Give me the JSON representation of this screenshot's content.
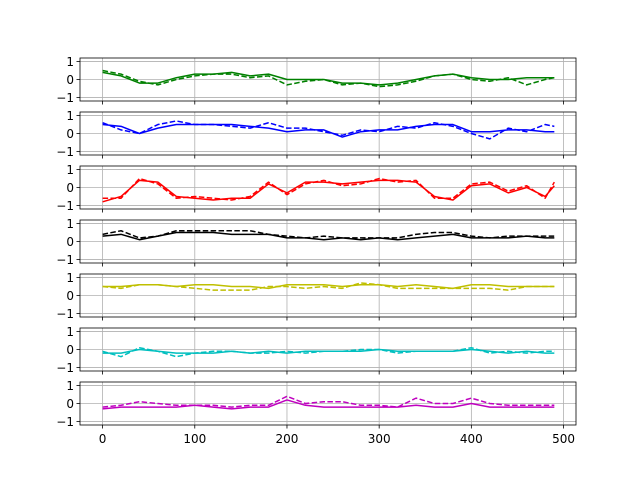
{
  "chart_data": [
    {
      "type": "line",
      "color": "#008000",
      "ylim": [
        -1.2,
        1.2
      ],
      "yticks": [
        "1",
        "0",
        "−1"
      ],
      "x": [
        0,
        20,
        40,
        60,
        80,
        100,
        120,
        140,
        160,
        180,
        200,
        220,
        240,
        260,
        280,
        300,
        320,
        340,
        360,
        380,
        400,
        420,
        440,
        460,
        480,
        490
      ],
      "series": [
        {
          "style": "solid",
          "values": [
            0.4,
            0.2,
            -0.2,
            -0.2,
            0.1,
            0.3,
            0.3,
            0.4,
            0.2,
            0.3,
            0.0,
            0.0,
            0.0,
            -0.2,
            -0.2,
            -0.3,
            -0.2,
            0.0,
            0.2,
            0.3,
            0.1,
            0.0,
            0.0,
            0.1,
            0.1,
            0.1
          ]
        },
        {
          "style": "dashed",
          "values": [
            0.5,
            0.3,
            -0.1,
            -0.3,
            0.0,
            0.2,
            0.3,
            0.3,
            0.1,
            0.2,
            -0.3,
            -0.1,
            0.0,
            -0.3,
            -0.2,
            -0.4,
            -0.3,
            -0.1,
            0.2,
            0.3,
            0.0,
            -0.1,
            0.1,
            -0.3,
            0.0,
            0.1
          ]
        }
      ]
    },
    {
      "type": "line",
      "color": "#0000ff",
      "ylim": [
        -1.2,
        1.2
      ],
      "yticks": [
        "1",
        "0",
        "−1"
      ],
      "x": [
        0,
        20,
        40,
        60,
        80,
        100,
        120,
        140,
        160,
        180,
        200,
        220,
        240,
        260,
        280,
        300,
        320,
        340,
        360,
        380,
        400,
        420,
        440,
        460,
        480,
        490
      ],
      "series": [
        {
          "style": "solid",
          "values": [
            0.5,
            0.4,
            0.0,
            0.3,
            0.5,
            0.5,
            0.5,
            0.5,
            0.4,
            0.3,
            0.1,
            0.2,
            0.2,
            -0.2,
            0.1,
            0.2,
            0.2,
            0.4,
            0.5,
            0.5,
            0.1,
            0.1,
            0.2,
            0.2,
            0.1,
            0.1
          ]
        },
        {
          "style": "dashed",
          "values": [
            0.6,
            0.2,
            0.0,
            0.5,
            0.7,
            0.5,
            0.5,
            0.4,
            0.3,
            0.6,
            0.3,
            0.3,
            0.1,
            -0.1,
            0.2,
            0.1,
            0.4,
            0.3,
            0.6,
            0.4,
            0.0,
            -0.3,
            0.3,
            0.1,
            0.5,
            0.4
          ]
        }
      ]
    },
    {
      "type": "line",
      "color": "#ff0000",
      "ylim": [
        -1.2,
        1.2
      ],
      "yticks": [
        "1",
        "0",
        "−1"
      ],
      "x": [
        0,
        20,
        40,
        60,
        80,
        100,
        120,
        140,
        160,
        180,
        200,
        220,
        240,
        260,
        280,
        300,
        320,
        340,
        360,
        380,
        400,
        420,
        440,
        460,
        480,
        490
      ],
      "series": [
        {
          "style": "solid",
          "values": [
            -0.8,
            -0.5,
            0.4,
            0.3,
            -0.5,
            -0.6,
            -0.7,
            -0.6,
            -0.6,
            0.2,
            -0.3,
            0.3,
            0.3,
            0.2,
            0.3,
            0.4,
            0.4,
            0.3,
            -0.5,
            -0.7,
            0.1,
            0.2,
            -0.3,
            0.0,
            -0.5,
            0.1
          ]
        },
        {
          "style": "dashed",
          "values": [
            -0.6,
            -0.6,
            0.5,
            0.2,
            -0.6,
            -0.5,
            -0.6,
            -0.7,
            -0.5,
            0.3,
            -0.4,
            0.2,
            0.4,
            0.1,
            0.2,
            0.5,
            0.3,
            0.4,
            -0.6,
            -0.6,
            0.2,
            0.3,
            -0.2,
            0.1,
            -0.6,
            0.3
          ]
        }
      ]
    },
    {
      "type": "line",
      "color": "#000000",
      "ylim": [
        -1.2,
        1.2
      ],
      "yticks": [
        "1",
        "0",
        "−1"
      ],
      "x": [
        0,
        20,
        40,
        60,
        80,
        100,
        120,
        140,
        160,
        180,
        200,
        220,
        240,
        260,
        280,
        300,
        320,
        340,
        360,
        380,
        400,
        420,
        440,
        460,
        480,
        490
      ],
      "series": [
        {
          "style": "solid",
          "values": [
            0.3,
            0.4,
            0.1,
            0.3,
            0.5,
            0.5,
            0.5,
            0.4,
            0.4,
            0.4,
            0.2,
            0.2,
            0.1,
            0.2,
            0.1,
            0.2,
            0.1,
            0.2,
            0.3,
            0.4,
            0.2,
            0.2,
            0.2,
            0.3,
            0.2,
            0.2
          ]
        },
        {
          "style": "dashed",
          "values": [
            0.4,
            0.6,
            0.2,
            0.3,
            0.6,
            0.6,
            0.6,
            0.6,
            0.6,
            0.4,
            0.3,
            0.2,
            0.3,
            0.2,
            0.2,
            0.2,
            0.2,
            0.4,
            0.5,
            0.5,
            0.3,
            0.2,
            0.3,
            0.3,
            0.3,
            0.3
          ]
        }
      ]
    },
    {
      "type": "line",
      "color": "#bfbf00",
      "ylim": [
        -1.2,
        1.2
      ],
      "yticks": [
        "1",
        "0",
        "−1"
      ],
      "x": [
        0,
        20,
        40,
        60,
        80,
        100,
        120,
        140,
        160,
        180,
        200,
        220,
        240,
        260,
        280,
        300,
        320,
        340,
        360,
        380,
        400,
        420,
        440,
        460,
        480,
        490
      ],
      "series": [
        {
          "style": "solid",
          "values": [
            0.5,
            0.5,
            0.6,
            0.6,
            0.5,
            0.6,
            0.6,
            0.5,
            0.5,
            0.4,
            0.6,
            0.6,
            0.6,
            0.5,
            0.6,
            0.6,
            0.5,
            0.6,
            0.5,
            0.4,
            0.6,
            0.6,
            0.5,
            0.5,
            0.5,
            0.5
          ]
        },
        {
          "style": "dashed",
          "values": [
            0.5,
            0.4,
            0.6,
            0.6,
            0.5,
            0.4,
            0.3,
            0.3,
            0.3,
            0.5,
            0.5,
            0.4,
            0.5,
            0.4,
            0.7,
            0.6,
            0.4,
            0.4,
            0.4,
            0.4,
            0.4,
            0.4,
            0.3,
            0.5,
            0.5,
            0.5
          ]
        }
      ]
    },
    {
      "type": "line",
      "color": "#00bfbf",
      "ylim": [
        -1.2,
        1.2
      ],
      "yticks": [
        "1",
        "0",
        "−1"
      ],
      "x": [
        0,
        20,
        40,
        60,
        80,
        100,
        120,
        140,
        160,
        180,
        200,
        220,
        240,
        260,
        280,
        300,
        320,
        340,
        360,
        380,
        400,
        420,
        440,
        460,
        480,
        490
      ],
      "series": [
        {
          "style": "solid",
          "values": [
            -0.2,
            -0.2,
            0.0,
            -0.1,
            -0.2,
            -0.2,
            -0.2,
            -0.1,
            -0.2,
            -0.1,
            -0.2,
            -0.1,
            -0.1,
            -0.1,
            -0.1,
            0.0,
            -0.1,
            -0.1,
            -0.1,
            -0.1,
            0.0,
            -0.1,
            -0.2,
            -0.1,
            -0.2,
            -0.2
          ]
        },
        {
          "style": "dashed",
          "values": [
            -0.1,
            -0.4,
            0.1,
            -0.1,
            -0.4,
            -0.2,
            -0.1,
            -0.1,
            -0.2,
            -0.2,
            -0.1,
            -0.2,
            -0.1,
            -0.1,
            0.0,
            0.0,
            -0.2,
            -0.1,
            -0.1,
            -0.1,
            0.1,
            -0.2,
            -0.1,
            -0.2,
            -0.1,
            -0.1
          ]
        }
      ]
    },
    {
      "type": "line",
      "color": "#bf00bf",
      "ylim": [
        -1.2,
        1.2
      ],
      "yticks": [
        "1",
        "0",
        "−1"
      ],
      "xticks": [
        "0",
        "100",
        "200",
        "300",
        "400",
        "500"
      ],
      "xtick_values": [
        0,
        100,
        200,
        300,
        400,
        500
      ],
      "x": [
        0,
        20,
        40,
        60,
        80,
        100,
        120,
        140,
        160,
        180,
        200,
        220,
        240,
        260,
        280,
        300,
        320,
        340,
        360,
        380,
        400,
        420,
        440,
        460,
        480,
        490
      ],
      "series": [
        {
          "style": "solid",
          "values": [
            -0.3,
            -0.2,
            -0.2,
            -0.2,
            -0.2,
            -0.1,
            -0.2,
            -0.3,
            -0.2,
            -0.2,
            0.2,
            -0.1,
            -0.2,
            -0.2,
            -0.2,
            -0.2,
            -0.2,
            -0.1,
            -0.2,
            -0.2,
            0.0,
            -0.2,
            -0.2,
            -0.2,
            -0.2,
            -0.2
          ]
        },
        {
          "style": "dashed",
          "values": [
            -0.2,
            -0.1,
            0.1,
            0.0,
            -0.1,
            -0.1,
            -0.1,
            -0.2,
            -0.1,
            -0.1,
            0.4,
            0.0,
            0.1,
            0.1,
            -0.1,
            -0.1,
            -0.2,
            0.3,
            0.0,
            0.0,
            0.3,
            0.0,
            -0.1,
            -0.1,
            -0.1,
            -0.1
          ]
        }
      ]
    }
  ]
}
